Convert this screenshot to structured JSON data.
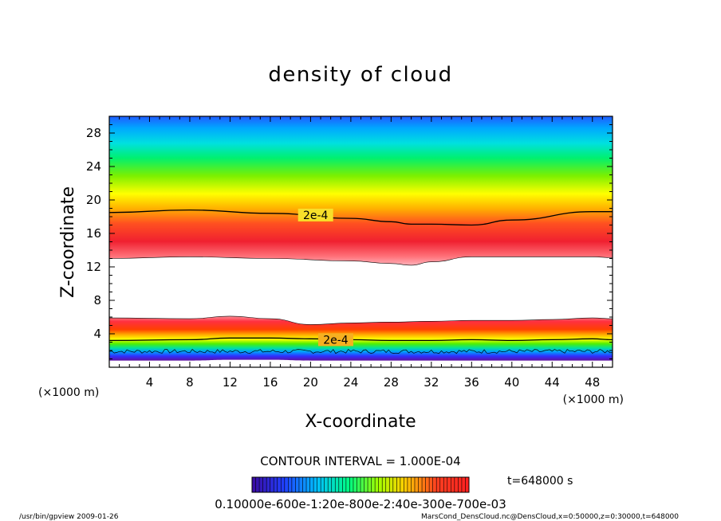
{
  "chart_data": {
    "type": "heatmap",
    "title": "density of cloud",
    "xlabel": "X-coordinate",
    "ylabel": "Z-coordinate",
    "x_unit": "(×1000 m)",
    "z_unit": "(×1000 m)",
    "xlim": [
      0,
      50
    ],
    "ylim": [
      0,
      30
    ],
    "x_ticks": [
      4,
      8,
      12,
      16,
      20,
      24,
      28,
      32,
      36,
      40,
      44,
      48
    ],
    "y_ticks": [
      4,
      8,
      12,
      16,
      20,
      24,
      28
    ],
    "upper_layer": {
      "x": [
        0,
        8,
        16,
        24,
        28,
        30,
        32,
        36,
        40,
        48,
        50
      ],
      "bottom_km": [
        13.0,
        13.2,
        13.0,
        12.7,
        12.4,
        12.2,
        12.6,
        13.2,
        13.2,
        13.2,
        13.1
      ],
      "peak_km": [
        15.3,
        15.2,
        15.0,
        14.6,
        13.9,
        13.6,
        14.0,
        14.8,
        15.1,
        15.3,
        15.3
      ],
      "top_2e4_km": [
        18.5,
        18.8,
        18.4,
        17.8,
        17.4,
        17.1,
        17.1,
        17.0,
        17.6,
        18.6,
        18.6
      ]
    },
    "lower_layer": {
      "x": [
        0,
        8,
        12,
        16,
        20,
        24,
        28,
        32,
        36,
        40,
        44,
        48,
        50
      ],
      "top_km": [
        5.9,
        5.8,
        6.1,
        5.8,
        5.1,
        5.3,
        5.4,
        5.5,
        5.6,
        5.6,
        5.7,
        5.9,
        5.8
      ],
      "contour_2e4_km": [
        3.2,
        3.3,
        3.5,
        3.5,
        3.4,
        3.3,
        3.2,
        3.2,
        3.3,
        3.2,
        3.3,
        3.4,
        3.3
      ],
      "bottom_km": [
        0.8,
        0.8,
        0.9,
        0.9,
        0.8,
        0.8,
        0.8,
        0.8,
        0.8,
        0.8,
        0.8,
        0.8,
        0.8
      ]
    },
    "contour_labels": [
      {
        "text": "2e-4",
        "x": 20.5,
        "z": 18.2
      },
      {
        "text": "2e-4",
        "x": 22.5,
        "z": 3.3
      }
    ],
    "contour_interval_text": "CONTOUR INTERVAL = 1.000E-04",
    "time_text": "t=648000 s",
    "colorbar_label": "0.10000e-600e-1:20e-800e-2:40e-300e-700e-03",
    "colors": {
      "low": "#3b0aa0",
      "mid": "#00ff40",
      "high": "#ff2020",
      "contour": "#000000"
    }
  },
  "footer": {
    "left": "/usr/bin/gpview  2009-01-26",
    "right": "MarsCond_DensCloud.nc@DensCloud,x=0:50000,z=0:30000,t=648000"
  }
}
